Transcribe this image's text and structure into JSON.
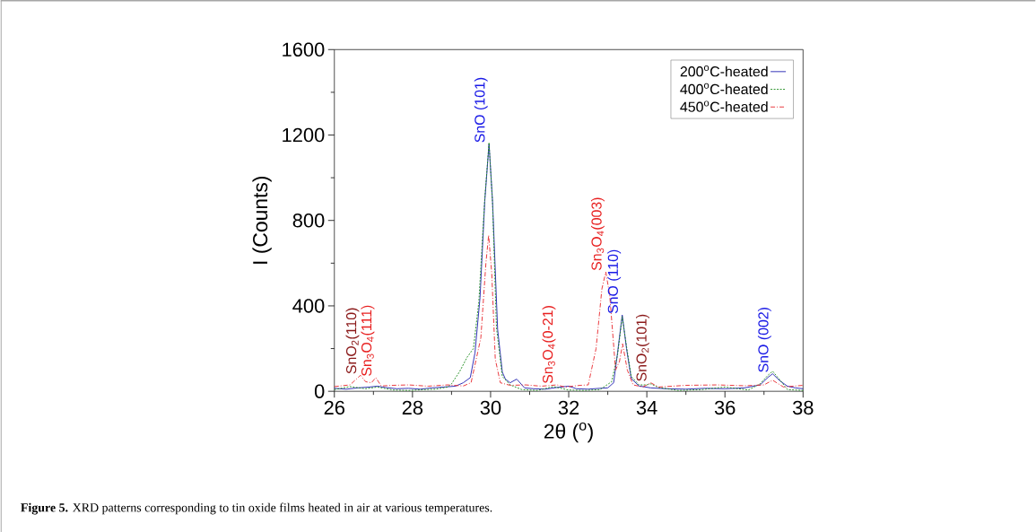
{
  "chart_data": {
    "type": "line",
    "xlabel": "2θ ($^{o}$)",
    "ylabel": "I (Counts)",
    "xlim": [
      26,
      38
    ],
    "xticks": [
      26,
      28,
      30,
      32,
      34,
      36,
      38
    ],
    "ylim": [
      0,
      1600
    ],
    "yticks": [
      0,
      400,
      800,
      1200,
      1600
    ],
    "legend": "top right",
    "marker": "none",
    "series": [
      {
        "name": "200$^{o}$C-heated",
        "color": "#1f1fb0",
        "line_style": "solid",
        "x": [
          26.0,
          26.3,
          26.6,
          26.9,
          27.1,
          27.3,
          27.6,
          27.9,
          28.2,
          28.5,
          28.8,
          29.1,
          29.3,
          29.48,
          29.6,
          29.73,
          29.85,
          29.96,
          30.05,
          30.18,
          30.3,
          30.38,
          30.5,
          30.67,
          30.87,
          31.1,
          31.4,
          31.7,
          32.0,
          32.2,
          32.5,
          32.8,
          33.0,
          33.15,
          33.25,
          33.37,
          33.48,
          33.6,
          33.8,
          34.1,
          34.5,
          35.0,
          35.5,
          36.0,
          36.5,
          36.9,
          37.1,
          37.22,
          37.4,
          37.6,
          37.8,
          38.0
        ],
        "values": [
          14,
          10,
          16,
          20,
          24,
          18,
          12,
          14,
          10,
          16,
          20,
          24,
          40,
          64,
          180,
          440,
          888,
          1158,
          888,
          290,
          90,
          57,
          40,
          57,
          16,
          12,
          10,
          18,
          24,
          12,
          10,
          14,
          16,
          40,
          180,
          357,
          200,
          60,
          25,
          16,
          12,
          10,
          14,
          12,
          16,
          30,
          65,
          82,
          50,
          24,
          16,
          12
        ]
      },
      {
        "name": "400$^{o}$C-heated",
        "color": "#1a8a1a",
        "line_style": "dashed",
        "x": [
          26.0,
          26.4,
          26.8,
          27.1,
          27.5,
          27.9,
          28.3,
          28.6,
          28.9,
          29.0,
          29.2,
          29.4,
          29.56,
          29.7,
          29.85,
          29.96,
          30.05,
          30.15,
          30.3,
          30.5,
          30.8,
          31.2,
          31.6,
          32.0,
          32.4,
          32.8,
          33.1,
          33.25,
          33.37,
          33.48,
          33.6,
          33.8,
          34.0,
          34.1,
          34.3,
          34.8,
          35.4,
          36.0,
          36.6,
          36.9,
          37.1,
          37.22,
          37.4,
          37.6,
          38.0
        ],
        "values": [
          8,
          22,
          12,
          20,
          6,
          4,
          8,
          10,
          20,
          35,
          90,
          160,
          200,
          420,
          900,
          1165,
          880,
          300,
          70,
          30,
          8,
          4,
          22,
          6,
          4,
          8,
          45,
          170,
          350,
          210,
          70,
          30,
          30,
          35,
          18,
          4,
          8,
          20,
          6,
          35,
          75,
          94,
          55,
          8,
          4
        ]
      },
      {
        "name": "450$^{o}$C-heated",
        "color": "#e8252a",
        "line_style": "dashdot",
        "x": [
          26.0,
          26.4,
          26.67,
          26.8,
          26.95,
          27.06,
          27.2,
          27.5,
          27.9,
          28.4,
          28.9,
          29.3,
          29.5,
          29.75,
          29.88,
          29.95,
          30.03,
          30.12,
          30.25,
          30.5,
          30.9,
          31.3,
          31.7,
          31.9,
          32.3,
          32.5,
          32.7,
          32.85,
          32.95,
          33.05,
          33.2,
          33.3,
          33.38,
          33.5,
          33.65,
          33.9,
          34.1,
          34.3,
          35.0,
          35.8,
          36.5,
          37.0,
          37.22,
          37.5,
          38.0
        ],
        "values": [
          22,
          30,
          75,
          45,
          40,
          64,
          25,
          28,
          30,
          24,
          30,
          25,
          40,
          250,
          600,
          731,
          550,
          150,
          40,
          28,
          30,
          24,
          30,
          20,
          28,
          30,
          200,
          480,
          559,
          450,
          100,
          140,
          222,
          100,
          30,
          20,
          40,
          20,
          28,
          30,
          26,
          30,
          52,
          20,
          28
        ]
      }
    ],
    "annotations": [
      {
        "text": "SnO$_{2}$(110)",
        "x": 26.67,
        "y": 75
      },
      {
        "text": "Sn$_{3}$O$_{4}$(111)",
        "x": 27.06,
        "y": 64
      },
      {
        "text": "SnO (101)",
        "x": 29.96,
        "y": 1158
      },
      {
        "text": "Sn$_{3}$O$_{4}$(0-21)",
        "x": 31.7,
        "y": 30
      },
      {
        "text": "Sn$_{3}$O$_{4}$(003)",
        "x": 32.95,
        "y": 559
      },
      {
        "text": "SnO (110)",
        "x": 33.37,
        "y": 357
      },
      {
        "text": "SnO$_{2}$(101)",
        "x": 34.1,
        "y": 40
      },
      {
        "text": "SnO (002)",
        "x": 37.22,
        "y": 82
      },
      "**Figure 5.** XRD patterns corresponding to tin oxide films heated in air at various temperatures."
    ]
  }
}
